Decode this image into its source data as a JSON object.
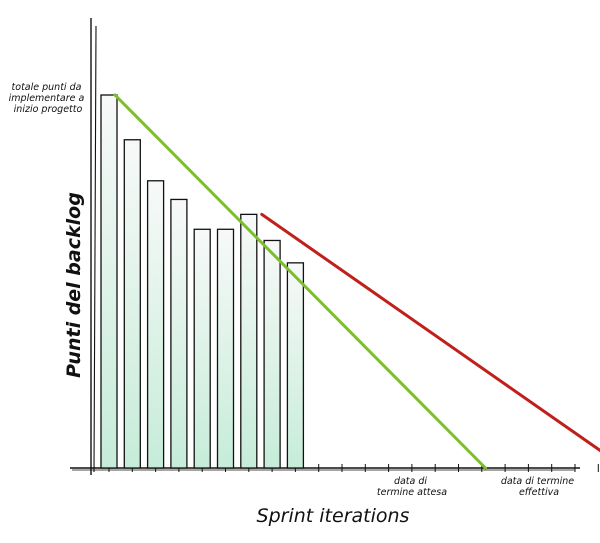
{
  "chart_data": {
    "type": "bar",
    "title": "",
    "xlabel": "Sprint iterations",
    "ylabel": "Punti del backlog",
    "y_start_label": [
      "totale punti da",
      "implementare a",
      "inizio progetto"
    ],
    "bar_values": [
      100,
      88,
      77,
      72,
      64,
      64,
      68,
      61,
      55
    ],
    "ylim": [
      0,
      100
    ],
    "tick_count": 25,
    "lines": [
      {
        "color": "#7cbf2a",
        "from": {
          "index": 0,
          "value": 100
        },
        "to": {
          "index": 16.5,
          "value": 0
        },
        "end_label": [
          "data di",
          "termine attesa"
        ]
      },
      {
        "color": "#c0201a",
        "from": {
          "index": 6.3,
          "value": 68
        },
        "to": {
          "index": 22.5,
          "value": 0
        },
        "end_label": [
          "data di termine",
          "effettiva"
        ]
      }
    ],
    "bar_fill_top": "#f7f9f8",
    "bar_fill_bottom": "#c6ecd9",
    "grid": false
  }
}
